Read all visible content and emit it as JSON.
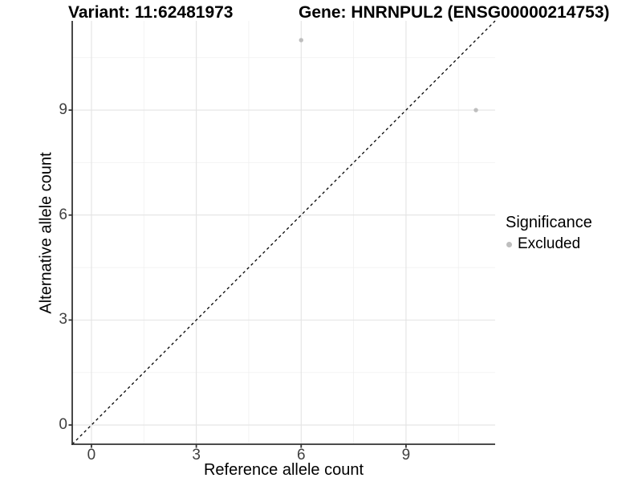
{
  "chart_data": {
    "type": "scatter",
    "titles": [
      "Variant: 11:62481973",
      "Gene: HNRNPUL2 (ENSG00000214753)"
    ],
    "xlabel": "Reference allele count",
    "ylabel": "Alternative allele count",
    "xlim": [
      -0.55,
      11.55
    ],
    "ylim": [
      -0.55,
      11.55
    ],
    "x_ticks": [
      0,
      3,
      6,
      9
    ],
    "y_ticks": [
      0,
      3,
      6,
      9
    ],
    "x_minor_ticks": [
      1.5,
      4.5,
      7.5,
      10.5
    ],
    "y_minor_ticks": [
      1.5,
      4.5,
      7.5,
      10.5
    ],
    "grid": true,
    "series": [
      {
        "name": "Excluded",
        "points": [
          [
            6,
            11
          ],
          [
            11,
            9
          ]
        ],
        "color": "#bebebe"
      }
    ],
    "reference_line": {
      "type": "identity",
      "style": "dashed",
      "color": "#000000"
    },
    "legend": {
      "title": "Significance",
      "position": "right",
      "entries": [
        {
          "label": "Excluded",
          "color": "#bebebe"
        }
      ]
    },
    "theme": {
      "background": "#ffffff",
      "grid_major": "#e3e3e3",
      "grid_minor": "#f0f0f0",
      "axis_line": "#333333",
      "axis_text": "#404040",
      "text": "#000000"
    }
  }
}
